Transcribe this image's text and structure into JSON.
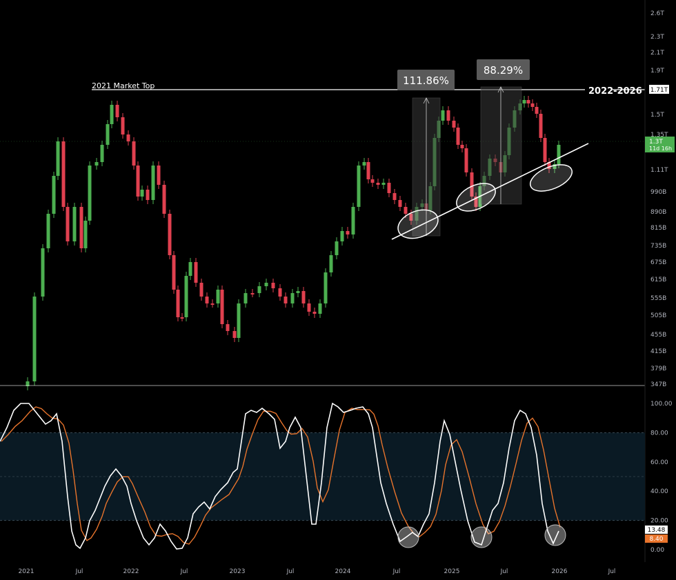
{
  "colors": {
    "background": "#000000",
    "up": "#4caf50",
    "down": "#e0404f",
    "stoch_k": "#ffffff",
    "stoch_d": "#e8742c",
    "axis_text": "#b2b5be",
    "band_fill": "#0a1a24",
    "shade": "#3a3a3a",
    "price_tag": "#4caf50",
    "d_tag": "#e8742c"
  },
  "price_axis": {
    "ticks": [
      "2.6T",
      "2.3T",
      "2.1T",
      "1.9T",
      "1.71T",
      "1.5T",
      "1.35T",
      "1.3T",
      "1.11T",
      "990B",
      "890B",
      "815B",
      "735B",
      "675B",
      "615B",
      "555B",
      "505B",
      "455B",
      "415B",
      "379B",
      "347B"
    ],
    "current_price": "1.3T",
    "countdown": "11d 16h"
  },
  "stoch_axis": {
    "ticks": [
      "100.00",
      "80.00",
      "60.00",
      "40.00",
      "20.00",
      "0.00"
    ],
    "k_value": "13.48",
    "d_value": "8.40"
  },
  "time_axis": {
    "ticks": [
      "2021",
      "Jul",
      "2022",
      "Jul",
      "2023",
      "Jul",
      "2024",
      "Jul",
      "2025",
      "Jul",
      "2026",
      "Jul"
    ]
  },
  "annotations": {
    "market_top_label": "2021 Market Top",
    "range_label": "2022-2026",
    "market_top_value": "1.71T",
    "move1": "111.86%",
    "move2": "88.29%"
  },
  "chart_data": [
    {
      "type": "candlestick",
      "title": "",
      "x_range": [
        "2021-01",
        "2026-09"
      ],
      "ylim": [
        "347B",
        "2.6T"
      ],
      "y_scale": "log",
      "approx_closes_trillions": [
        {
          "date": "2021-01",
          "close": 0.37
        },
        {
          "date": "2021-05",
          "close": 1.2
        },
        {
          "date": "2021-07",
          "close": 0.85
        },
        {
          "date": "2021-11",
          "close": 1.6
        },
        {
          "date": "2022-01",
          "close": 1.3
        },
        {
          "date": "2022-06",
          "close": 0.55
        },
        {
          "date": "2022-11",
          "close": 0.46
        },
        {
          "date": "2023-06",
          "close": 0.52
        },
        {
          "date": "2024-03",
          "close": 1.15
        },
        {
          "date": "2024-08",
          "close": 0.85
        },
        {
          "date": "2024-12",
          "close": 1.55
        },
        {
          "date": "2025-04",
          "close": 0.92
        },
        {
          "date": "2025-08",
          "close": 1.65
        },
        {
          "date": "2025-12",
          "close": 1.3
        }
      ],
      "horizontal_line": {
        "label": "2021 Market Top",
        "value": "1.71T"
      },
      "rallies": [
        {
          "label": "111.86%",
          "start": "2024-08",
          "end": "2024-12"
        },
        {
          "label": "88.29%",
          "start": "2025-04",
          "end": "2025-08"
        }
      ],
      "trendline": {
        "from": "2024-08",
        "to": "2026-01"
      }
    },
    {
      "type": "line",
      "title": "",
      "ylim": [
        0,
        100
      ],
      "bands": [
        20,
        80
      ],
      "series": [
        {
          "color": "#ffffff",
          "current": 13.48
        },
        {
          "color": "#e8742c",
          "current": 8.4
        }
      ]
    }
  ]
}
